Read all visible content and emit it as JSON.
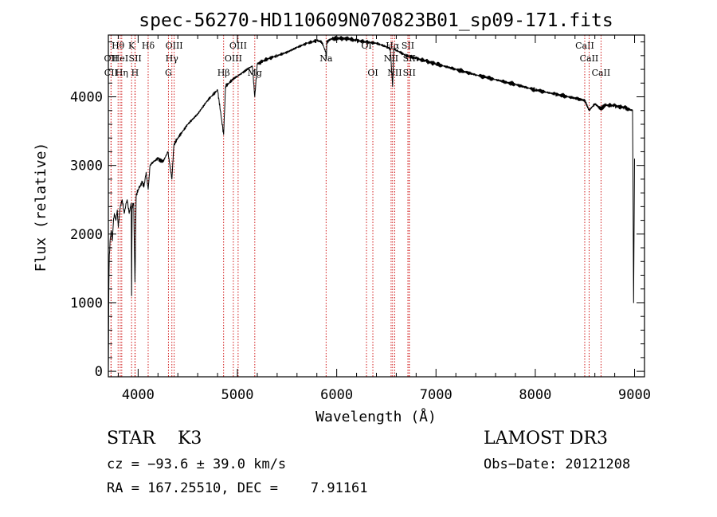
{
  "chart_data": {
    "type": "line",
    "title": "spec-56270-HD110609N070823B01_sp09-171.fits",
    "xlabel": "Wavelength (Å)",
    "ylabel": "Flux (relative)",
    "xlim": [
      3700,
      9100
    ],
    "ylim": [
      -80,
      4900
    ],
    "xticks": [
      4000,
      5000,
      6000,
      7000,
      8000,
      9000
    ],
    "yticks": [
      0,
      1000,
      2000,
      3000,
      4000
    ],
    "grid": false,
    "series": [
      {
        "name": "spectrum",
        "x": [
          3700,
          3705,
          3710,
          3720,
          3730,
          3740,
          3750,
          3760,
          3775,
          3790,
          3800,
          3820,
          3840,
          3860,
          3880,
          3890,
          3910,
          3930,
          3934,
          3940,
          3955,
          3968,
          3980,
          4000,
          4020,
          4040,
          4060,
          4080,
          4101,
          4120,
          4150,
          4200,
          4250,
          4300,
          4320,
          4340,
          4360,
          4400,
          4500,
          4600,
          4700,
          4800,
          4861,
          4880,
          4950,
          5000,
          5050,
          5100,
          5150,
          5175,
          5200,
          5300,
          5400,
          5500,
          5600,
          5700,
          5800,
          5850,
          5890,
          5895,
          5900,
          5950,
          6000,
          6100,
          6200,
          6300,
          6400,
          6500,
          6540,
          6563,
          6575,
          6600,
          6700,
          6800,
          6900,
          7000,
          7200,
          7400,
          7600,
          7800,
          8000,
          8200,
          8400,
          8498,
          8542,
          8600,
          8662,
          8700,
          8800,
          8900,
          8980,
          8990,
          9000
        ],
        "y": [
          0,
          1200,
          1700,
          1950,
          2050,
          1900,
          2150,
          2300,
          2200,
          2350,
          2100,
          2400,
          2500,
          2300,
          2450,
          2500,
          2300,
          2450,
          1100,
          2400,
          2450,
          1300,
          2550,
          2650,
          2700,
          2750,
          2700,
          2900,
          2650,
          3000,
          3050,
          3100,
          3050,
          3200,
          3000,
          2800,
          3300,
          3400,
          3600,
          3750,
          3950,
          4100,
          3450,
          4150,
          4250,
          4300,
          4350,
          4400,
          4450,
          4000,
          4480,
          4550,
          4600,
          4650,
          4720,
          4780,
          4820,
          4800,
          4650,
          4550,
          4800,
          4850,
          4850,
          4850,
          4820,
          4800,
          4780,
          4730,
          4700,
          4150,
          4700,
          4680,
          4600,
          4560,
          4520,
          4480,
          4400,
          4320,
          4250,
          4180,
          4100,
          4040,
          3980,
          3950,
          3800,
          3900,
          3820,
          3880,
          3870,
          3840,
          3800,
          1000,
          3100
        ]
      }
    ],
    "line_markers": [
      {
        "label": "OII",
        "x": 3727,
        "row": 2
      },
      {
        "label": "CII",
        "x": 3727,
        "row": 3
      },
      {
        "label": "Hθ",
        "x": 3798,
        "row": 1
      },
      {
        "label": "HeI",
        "x": 3820,
        "row": 2
      },
      {
        "label": "Hη",
        "x": 3835,
        "row": 3
      },
      {
        "label": "K",
        "x": 3934,
        "row": 1
      },
      {
        "label": "SII",
        "x": 3970,
        "row": 2
      },
      {
        "label": "H",
        "x": 3968,
        "row": 3
      },
      {
        "label": "Hδ",
        "x": 4101,
        "row": 1
      },
      {
        "label": "OIII",
        "x": 4363,
        "row": 1
      },
      {
        "label": "Hγ",
        "x": 4340,
        "row": 2
      },
      {
        "label": "G",
        "x": 4305,
        "row": 3
      },
      {
        "label": "Hβ",
        "x": 4861,
        "row": 3
      },
      {
        "label": "OIII",
        "x": 5007,
        "row": 1
      },
      {
        "label": "OIII",
        "x": 4959,
        "row": 2
      },
      {
        "label": "Mg",
        "x": 5175,
        "row": 3
      },
      {
        "label": "Na",
        "x": 5893,
        "row": 2
      },
      {
        "label": "OI",
        "x": 6300,
        "row": 1
      },
      {
        "label": "OI",
        "x": 6364,
        "row": 3
      },
      {
        "label": "Hα",
        "x": 6563,
        "row": 1
      },
      {
        "label": "NII",
        "x": 6548,
        "row": 2
      },
      {
        "label": "NII",
        "x": 6584,
        "row": 3
      },
      {
        "label": "SII",
        "x": 6717,
        "row": 1
      },
      {
        "label": "SII",
        "x": 6731,
        "row": 2
      },
      {
        "label": "SII",
        "x": 6731,
        "row": 3
      },
      {
        "label": "CaII",
        "x": 8498,
        "row": 1
      },
      {
        "label": "CaII",
        "x": 8542,
        "row": 2
      },
      {
        "label": "CaII",
        "x": 8662,
        "row": 3
      }
    ],
    "marker_color": "#cc0000"
  },
  "info": {
    "object_class": "STAR    K3",
    "survey": "LAMOST DR3",
    "cz": "cz = −93.6 ± 39.0 km/s",
    "obs_date": "Obs−Date: 20121208",
    "ra_dec": "RA = 167.25510, DEC =    7.91161"
  }
}
